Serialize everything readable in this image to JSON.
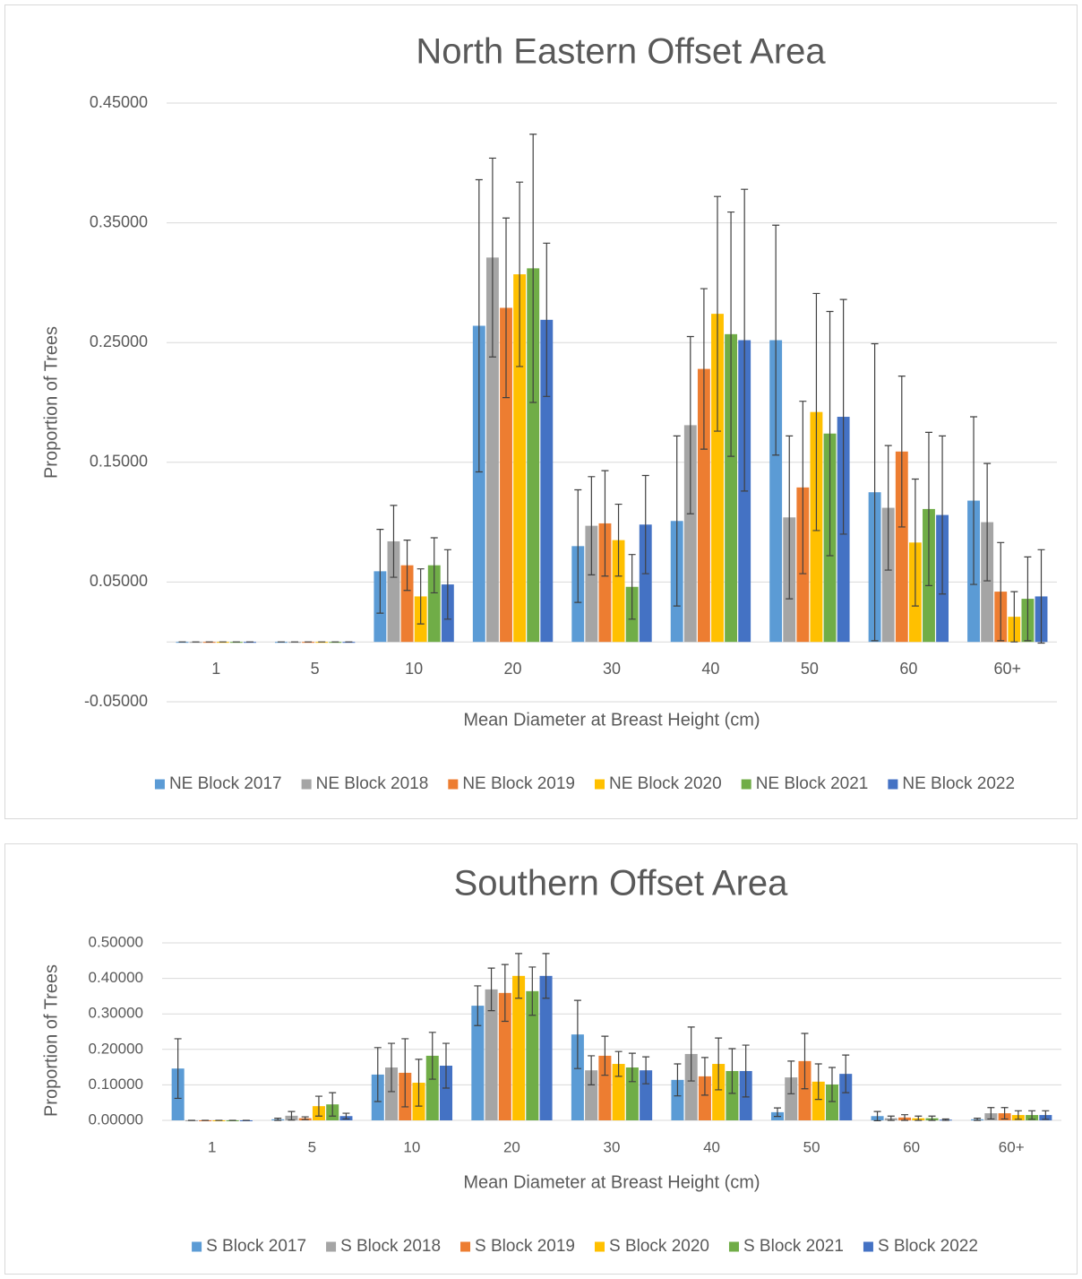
{
  "chart_data": [
    {
      "type": "bar",
      "title": "North Eastern Offset Area",
      "x_label": "Mean Diameter at Breast Height (cm)",
      "y_label": "Proportion of Trees",
      "categories": [
        "1",
        "5",
        "10",
        "20",
        "30",
        "40",
        "50",
        "60",
        "60+"
      ],
      "ylim": [
        -0.05,
        0.45
      ],
      "yticks": [
        {
          "value": -0.05,
          "label": "-0.05000"
        },
        {
          "value": 0.05,
          "label": "0.05000"
        },
        {
          "value": 0.15,
          "label": "0.15000"
        },
        {
          "value": 0.25,
          "label": "0.25000"
        },
        {
          "value": 0.35,
          "label": "0.35000"
        },
        {
          "value": 0.45,
          "label": "0.45000"
        }
      ],
      "grid": true,
      "legend": "bottom",
      "series": [
        {
          "name": "NE Block 2017",
          "color": "#5b9bd5",
          "values": [
            0,
            0,
            0.059,
            0.264,
            0.08,
            0.101,
            0.252,
            0.125,
            0.118
          ],
          "errors": [
            0,
            0,
            0.035,
            0.122,
            0.047,
            0.071,
            0.096,
            0.124,
            0.07
          ]
        },
        {
          "name": "NE Block 2018",
          "color": "#a5a5a5",
          "values": [
            0,
            0,
            0.084,
            0.321,
            0.097,
            0.181,
            0.104,
            0.112,
            0.1
          ],
          "errors": [
            0,
            0,
            0.03,
            0.083,
            0.041,
            0.074,
            0.068,
            0.052,
            0.049
          ]
        },
        {
          "name": "NE Block 2019",
          "color": "#ed7d31",
          "values": [
            0,
            0,
            0.064,
            0.279,
            0.099,
            0.228,
            0.129,
            0.159,
            0.042
          ],
          "errors": [
            0,
            0,
            0.021,
            0.075,
            0.044,
            0.067,
            0.072,
            0.063,
            0.041
          ]
        },
        {
          "name": "NE Block 2020",
          "color": "#ffc000",
          "values": [
            0,
            0,
            0.038,
            0.307,
            0.085,
            0.274,
            0.192,
            0.083,
            0.021
          ],
          "errors": [
            0,
            0,
            0.023,
            0.077,
            0.03,
            0.098,
            0.099,
            0.053,
            0.021
          ]
        },
        {
          "name": "NE Block 2021",
          "color": "#70ad47",
          "values": [
            0,
            0,
            0.064,
            0.312,
            0.046,
            0.257,
            0.174,
            0.111,
            0.036
          ],
          "errors": [
            0,
            0,
            0.023,
            0.112,
            0.027,
            0.102,
            0.102,
            0.064,
            0.035
          ]
        },
        {
          "name": "NE Block 2022",
          "color": "#4472c4",
          "values": [
            0,
            0,
            0.048,
            0.269,
            0.098,
            0.252,
            0.188,
            0.106,
            0.038
          ],
          "errors": [
            0,
            0,
            0.029,
            0.064,
            0.041,
            0.126,
            0.098,
            0.066,
            0.039
          ]
        }
      ]
    },
    {
      "type": "bar",
      "title": "Southern Offset Area",
      "x_label": "Mean Diameter at Breast Height (cm)",
      "y_label": "Proportion of Trees",
      "categories": [
        "1",
        "5",
        "10",
        "20",
        "30",
        "40",
        "50",
        "60",
        "60+"
      ],
      "ylim": [
        0,
        0.5
      ],
      "yticks": [
        {
          "value": 0,
          "label": "0.00000"
        },
        {
          "value": 0.1,
          "label": "0.10000"
        },
        {
          "value": 0.2,
          "label": "0.20000"
        },
        {
          "value": 0.3,
          "label": "0.30000"
        },
        {
          "value": 0.4,
          "label": "0.40000"
        },
        {
          "value": 0.5,
          "label": "0.50000"
        }
      ],
      "grid": true,
      "legend": "bottom",
      "series": [
        {
          "name": "S Block 2017",
          "color": "#5b9bd5",
          "values": [
            0.146,
            0.003,
            0.129,
            0.323,
            0.242,
            0.114,
            0.023,
            0.012,
            0.003
          ],
          "errors": [
            0.084,
            0.003,
            0.076,
            0.056,
            0.096,
            0.045,
            0.012,
            0.013,
            0.003
          ]
        },
        {
          "name": "S Block 2018",
          "color": "#a5a5a5",
          "values": [
            0,
            0.013,
            0.149,
            0.369,
            0.141,
            0.187,
            0.121,
            0.006,
            0.02
          ],
          "errors": [
            0,
            0.012,
            0.068,
            0.06,
            0.041,
            0.076,
            0.046,
            0.006,
            0.016
          ]
        },
        {
          "name": "S Block 2019",
          "color": "#ed7d31",
          "values": [
            0,
            0.006,
            0.134,
            0.359,
            0.182,
            0.124,
            0.167,
            0.008,
            0.02
          ],
          "errors": [
            0,
            0.004,
            0.096,
            0.08,
            0.055,
            0.053,
            0.078,
            0.008,
            0.016
          ]
        },
        {
          "name": "S Block 2020",
          "color": "#ffc000",
          "values": [
            0,
            0.04,
            0.106,
            0.407,
            0.159,
            0.159,
            0.109,
            0.006,
            0.015
          ],
          "errors": [
            0,
            0.028,
            0.066,
            0.063,
            0.035,
            0.073,
            0.05,
            0.006,
            0.012
          ]
        },
        {
          "name": "S Block 2021",
          "color": "#70ad47",
          "values": [
            0,
            0.045,
            0.182,
            0.364,
            0.149,
            0.139,
            0.101,
            0.006,
            0.015
          ],
          "errors": [
            0,
            0.033,
            0.066,
            0.068,
            0.04,
            0.063,
            0.048,
            0.006,
            0.012
          ]
        },
        {
          "name": "S Block 2022",
          "color": "#4472c4",
          "values": [
            0,
            0.012,
            0.154,
            0.407,
            0.141,
            0.139,
            0.131,
            0.002,
            0.015
          ],
          "errors": [
            0,
            0.008,
            0.063,
            0.063,
            0.038,
            0.073,
            0.053,
            0.002,
            0.012
          ]
        }
      ]
    }
  ]
}
